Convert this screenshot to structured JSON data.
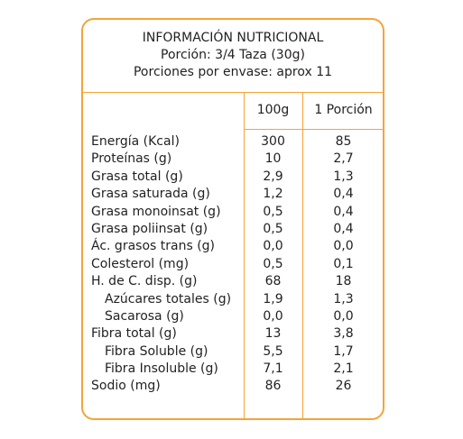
{
  "header": {
    "title": "INFORMACIÓN NUTRICIONAL",
    "serving": "Porción: 3/4 Taza (30g)",
    "servings_per_container": "Porciones por envase: aprox 11"
  },
  "columns": {
    "per_100g": "100g",
    "per_serving": "1 Porción"
  },
  "rows": [
    {
      "name": "Energía (Kcal)",
      "per_100g": "300",
      "per_serving": "85"
    },
    {
      "name": "Proteínas (g)",
      "per_100g": "10",
      "per_serving": "2,7"
    },
    {
      "name": "Grasa total (g)",
      "per_100g": "2,9",
      "per_serving": "1,3"
    },
    {
      "name": "Grasa saturada (g)",
      "per_100g": "1,2",
      "per_serving": "0,4"
    },
    {
      "name": "Grasa monoinsat (g)",
      "per_100g": "0,5",
      "per_serving": "0,4"
    },
    {
      "name": "Grasa poliinsat (g)",
      "per_100g": "0,5",
      "per_serving": "0,4"
    },
    {
      "name": "Ác. grasos trans (g)",
      "per_100g": "0,0",
      "per_serving": "0,0"
    },
    {
      "name": "Colesterol (mg)",
      "per_100g": "0,5",
      "per_serving": "0,1"
    },
    {
      "name": "H. de C. disp. (g)",
      "per_100g": "68",
      "per_serving": "18"
    },
    {
      "name": "Azúcares totales (g)",
      "per_100g": "1,9",
      "per_serving": "1,3"
    },
    {
      "name": "Sacarosa (g)",
      "per_100g": "0,0",
      "per_serving": "0,0"
    },
    {
      "name": "Fibra total (g)",
      "per_100g": "13",
      "per_serving": "3,8"
    },
    {
      "name": "Fibra Soluble (g)",
      "per_100g": "5,5",
      "per_serving": "1,7"
    },
    {
      "name": "Fibra Insoluble (g)",
      "per_100g": "7,1",
      "per_serving": "2,1"
    },
    {
      "name": "Sodio (mg)",
      "per_100g": "86",
      "per_serving": "26"
    }
  ],
  "colors": {
    "border": "#f5a33a",
    "text": "#231f20"
  }
}
